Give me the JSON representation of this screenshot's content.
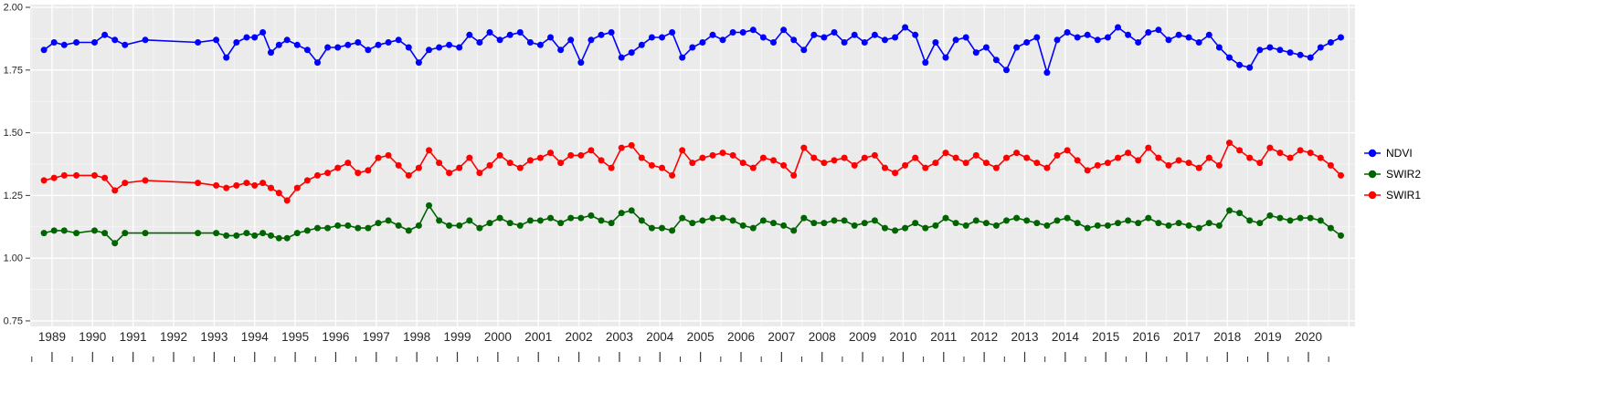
{
  "figure": {
    "background": "#FFFFFF",
    "panel_background": "#EBEBEB",
    "grid_color": "#FFFFFF",
    "tick_color": "#333333",
    "label_color": "#262626"
  },
  "chart_data": {
    "type": "line",
    "title": "",
    "xlabel": "",
    "ylabel": "",
    "grid": true,
    "legend_position": "right",
    "marker": "point-on-line",
    "xlim": [
      1988.46,
      2021.15
    ],
    "ylim": [
      0.728,
      2.011
    ],
    "x_ticks": [
      1989,
      1990,
      1991,
      1992,
      1993,
      1994,
      1995,
      1996,
      1997,
      1998,
      1999,
      2000,
      2001,
      2002,
      2003,
      2004,
      2005,
      2006,
      2007,
      2008,
      2009,
      2010,
      2011,
      2012,
      2013,
      2014,
      2015,
      2016,
      2017,
      2018,
      2019,
      2020
    ],
    "y_ticks": [
      0.75,
      1.0,
      1.25,
      1.5,
      1.75,
      2.0
    ],
    "y_tick_labels": [
      "0.75",
      "1.00",
      "1.25",
      "1.50",
      "1.75",
      "2.00"
    ],
    "x": [
      1988.8,
      1989.05,
      1989.3,
      1989.6,
      1990.05,
      1990.3,
      1990.55,
      1990.8,
      1991.3,
      1992.6,
      1993.05,
      1993.3,
      1993.55,
      1993.8,
      1994.0,
      1994.2,
      1994.4,
      1994.6,
      1994.8,
      1995.05,
      1995.3,
      1995.55,
      1995.8,
      1996.05,
      1996.3,
      1996.55,
      1996.8,
      1997.05,
      1997.3,
      1997.55,
      1997.8,
      1998.05,
      1998.3,
      1998.55,
      1998.8,
      1999.05,
      1999.3,
      1999.55,
      1999.8,
      2000.05,
      2000.3,
      2000.55,
      2000.8,
      2001.05,
      2001.3,
      2001.55,
      2001.8,
      2002.05,
      2002.3,
      2002.55,
      2002.8,
      2003.05,
      2003.3,
      2003.55,
      2003.8,
      2004.05,
      2004.3,
      2004.55,
      2004.8,
      2005.05,
      2005.3,
      2005.55,
      2005.8,
      2006.05,
      2006.3,
      2006.55,
      2006.8,
      2007.05,
      2007.3,
      2007.55,
      2007.8,
      2008.05,
      2008.3,
      2008.55,
      2008.8,
      2009.05,
      2009.3,
      2009.55,
      2009.8,
      2010.05,
      2010.3,
      2010.55,
      2010.8,
      2011.05,
      2011.3,
      2011.55,
      2011.8,
      2012.05,
      2012.3,
      2012.55,
      2012.8,
      2013.05,
      2013.3,
      2013.55,
      2013.8,
      2014.05,
      2014.3,
      2014.55,
      2014.8,
      2015.05,
      2015.3,
      2015.55,
      2015.8,
      2016.05,
      2016.3,
      2016.55,
      2016.8,
      2017.05,
      2017.3,
      2017.55,
      2017.8,
      2018.05,
      2018.3,
      2018.55,
      2018.8,
      2019.05,
      2019.3,
      2019.55,
      2019.8,
      2020.05,
      2020.3,
      2020.55,
      2020.8
    ],
    "series": [
      {
        "name": "NDVI",
        "color": "#0000FF",
        "values": [
          1.83,
          1.86,
          1.85,
          1.86,
          1.86,
          1.89,
          1.87,
          1.85,
          1.87,
          1.86,
          1.87,
          1.8,
          1.86,
          1.88,
          1.88,
          1.9,
          1.82,
          1.85,
          1.87,
          1.85,
          1.83,
          1.78,
          1.84,
          1.84,
          1.85,
          1.86,
          1.83,
          1.85,
          1.86,
          1.87,
          1.84,
          1.78,
          1.83,
          1.84,
          1.85,
          1.84,
          1.89,
          1.86,
          1.9,
          1.87,
          1.89,
          1.9,
          1.86,
          1.85,
          1.88,
          1.83,
          1.87,
          1.78,
          1.87,
          1.89,
          1.9,
          1.8,
          1.82,
          1.85,
          1.88,
          1.88,
          1.9,
          1.8,
          1.84,
          1.86,
          1.89,
          1.87,
          1.9,
          1.9,
          1.91,
          1.88,
          1.86,
          1.91,
          1.87,
          1.83,
          1.89,
          1.88,
          1.9,
          1.86,
          1.89,
          1.86,
          1.89,
          1.87,
          1.88,
          1.92,
          1.89,
          1.78,
          1.86,
          1.8,
          1.87,
          1.88,
          1.82,
          1.84,
          1.79,
          1.75,
          1.84,
          1.86,
          1.88,
          1.74,
          1.87,
          1.9,
          1.88,
          1.89,
          1.87,
          1.88,
          1.92,
          1.89,
          1.86,
          1.9,
          1.91,
          1.87,
          1.89,
          1.88,
          1.86,
          1.89,
          1.84,
          1.8,
          1.77,
          1.76,
          1.83,
          1.84,
          1.83,
          1.82,
          1.81,
          1.8,
          1.84,
          1.86,
          1.88
        ]
      },
      {
        "name": "SWIR2",
        "color": "#006400",
        "values": [
          1.1,
          1.11,
          1.11,
          1.1,
          1.11,
          1.1,
          1.06,
          1.1,
          1.1,
          1.1,
          1.1,
          1.09,
          1.09,
          1.1,
          1.09,
          1.1,
          1.09,
          1.08,
          1.08,
          1.1,
          1.11,
          1.12,
          1.12,
          1.13,
          1.13,
          1.12,
          1.12,
          1.14,
          1.15,
          1.13,
          1.11,
          1.13,
          1.21,
          1.15,
          1.13,
          1.13,
          1.15,
          1.12,
          1.14,
          1.16,
          1.14,
          1.13,
          1.15,
          1.15,
          1.16,
          1.14,
          1.16,
          1.16,
          1.17,
          1.15,
          1.14,
          1.18,
          1.19,
          1.15,
          1.12,
          1.12,
          1.11,
          1.16,
          1.14,
          1.15,
          1.16,
          1.16,
          1.15,
          1.13,
          1.12,
          1.15,
          1.14,
          1.13,
          1.11,
          1.16,
          1.14,
          1.14,
          1.15,
          1.15,
          1.13,
          1.14,
          1.15,
          1.12,
          1.11,
          1.12,
          1.14,
          1.12,
          1.13,
          1.16,
          1.14,
          1.13,
          1.15,
          1.14,
          1.13,
          1.15,
          1.16,
          1.15,
          1.14,
          1.13,
          1.15,
          1.16,
          1.14,
          1.12,
          1.13,
          1.13,
          1.14,
          1.15,
          1.14,
          1.16,
          1.14,
          1.13,
          1.14,
          1.13,
          1.12,
          1.14,
          1.13,
          1.19,
          1.18,
          1.15,
          1.14,
          1.17,
          1.16,
          1.15,
          1.16,
          1.16,
          1.15,
          1.12,
          1.09
        ]
      },
      {
        "name": "SWIR1",
        "color": "#FF0000",
        "values": [
          1.31,
          1.32,
          1.33,
          1.33,
          1.33,
          1.32,
          1.27,
          1.3,
          1.31,
          1.3,
          1.29,
          1.28,
          1.29,
          1.3,
          1.29,
          1.3,
          1.28,
          1.26,
          1.23,
          1.28,
          1.31,
          1.33,
          1.34,
          1.36,
          1.38,
          1.34,
          1.35,
          1.4,
          1.41,
          1.37,
          1.33,
          1.36,
          1.43,
          1.38,
          1.34,
          1.36,
          1.4,
          1.34,
          1.37,
          1.41,
          1.38,
          1.36,
          1.39,
          1.4,
          1.42,
          1.38,
          1.41,
          1.41,
          1.43,
          1.39,
          1.36,
          1.44,
          1.45,
          1.4,
          1.37,
          1.36,
          1.33,
          1.43,
          1.38,
          1.4,
          1.41,
          1.42,
          1.41,
          1.38,
          1.36,
          1.4,
          1.39,
          1.37,
          1.33,
          1.44,
          1.4,
          1.38,
          1.39,
          1.4,
          1.37,
          1.4,
          1.41,
          1.36,
          1.34,
          1.37,
          1.4,
          1.36,
          1.38,
          1.42,
          1.4,
          1.38,
          1.41,
          1.38,
          1.36,
          1.4,
          1.42,
          1.4,
          1.38,
          1.36,
          1.41,
          1.43,
          1.39,
          1.35,
          1.37,
          1.38,
          1.4,
          1.42,
          1.39,
          1.44,
          1.4,
          1.37,
          1.39,
          1.38,
          1.36,
          1.4,
          1.37,
          1.46,
          1.43,
          1.4,
          1.38,
          1.44,
          1.42,
          1.4,
          1.43,
          1.42,
          1.4,
          1.37,
          1.33
        ]
      }
    ]
  }
}
